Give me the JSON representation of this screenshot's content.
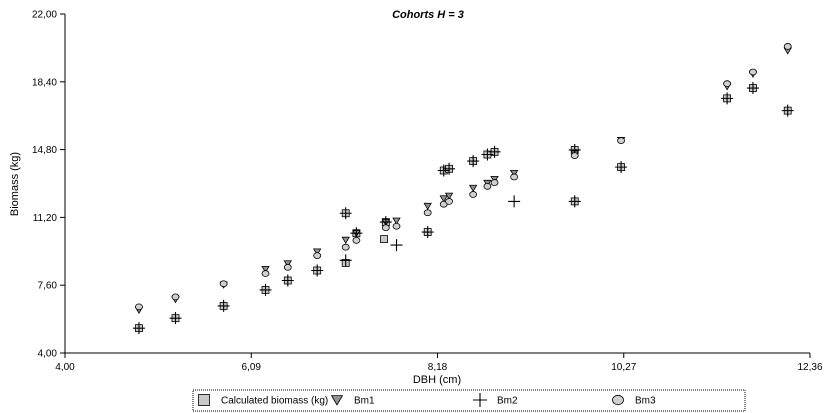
{
  "chart_data": {
    "type": "scatter",
    "title": "Cohorts H = 3",
    "xlabel": "DBH (cm)",
    "ylabel": "Biomass (kg)",
    "xlim": [
      4.0,
      12.36
    ],
    "ylim": [
      4.0,
      22.0
    ],
    "xticks": [
      "4,00",
      "6,09",
      "8,18",
      "10,27",
      "12,36"
    ],
    "yticks": [
      "4,00",
      "7,60",
      "11,20",
      "14,80",
      "18,40",
      "22,00"
    ],
    "grid": false,
    "legend_position": "bottom",
    "series": [
      {
        "name": "Calculated biomass (kg)",
        "marker": "square",
        "color": "#c8c8c8",
        "x": [
          4.83,
          5.24,
          5.78,
          6.25,
          6.5,
          6.83,
          7.15,
          7.15,
          7.27,
          7.58,
          7.6,
          8.07,
          8.25,
          8.31,
          8.58,
          8.74,
          8.82,
          9.72,
          9.72,
          10.24,
          11.43,
          11.72,
          12.11
        ],
        "y": [
          5.32,
          5.85,
          6.5,
          7.35,
          7.85,
          8.38,
          8.78,
          11.42,
          10.36,
          10.05,
          10.95,
          10.42,
          13.69,
          13.78,
          14.19,
          14.54,
          14.68,
          14.78,
          12.05,
          13.87,
          17.52,
          18.07,
          16.87
        ]
      },
      {
        "name": "Bm1",
        "marker": "triangle",
        "color": "#909090",
        "x": [
          4.83,
          5.24,
          5.78,
          6.25,
          6.5,
          6.83,
          7.15,
          7.27,
          7.6,
          7.72,
          8.07,
          8.25,
          8.31,
          8.58,
          8.74,
          8.82,
          9.04,
          9.72,
          10.24,
          11.43,
          11.72,
          12.11
        ],
        "y": [
          6.28,
          6.85,
          7.62,
          8.45,
          8.75,
          9.38,
          10.0,
          10.36,
          10.95,
          11.02,
          11.8,
          12.2,
          12.34,
          12.76,
          13.02,
          13.23,
          13.55,
          14.58,
          15.3,
          18.15,
          18.82,
          20.05
        ]
      },
      {
        "name": "Bm2",
        "marker": "cross",
        "color": "#000000",
        "x": [
          4.83,
          5.24,
          5.78,
          6.25,
          6.5,
          6.83,
          7.15,
          7.15,
          7.27,
          7.6,
          7.72,
          8.07,
          8.25,
          8.31,
          8.58,
          8.74,
          8.82,
          9.04,
          9.72,
          9.72,
          10.24,
          11.43,
          11.72,
          12.11
        ],
        "y": [
          5.32,
          5.85,
          6.5,
          7.35,
          7.85,
          8.38,
          8.92,
          11.42,
          10.36,
          10.95,
          9.73,
          10.42,
          13.69,
          13.78,
          14.19,
          14.54,
          14.68,
          12.05,
          14.78,
          12.05,
          13.87,
          17.52,
          18.07,
          16.87
        ]
      },
      {
        "name": "Bm3",
        "marker": "circle",
        "color": "#d0d0d0",
        "x": [
          4.83,
          5.24,
          5.78,
          6.25,
          6.5,
          6.83,
          7.15,
          7.27,
          7.6,
          7.72,
          8.07,
          8.25,
          8.31,
          8.58,
          8.74,
          8.82,
          9.04,
          9.72,
          10.24,
          11.43,
          11.72,
          12.11
        ],
        "y": [
          6.45,
          6.98,
          7.68,
          8.22,
          8.55,
          9.17,
          9.62,
          9.98,
          10.65,
          10.73,
          11.45,
          11.9,
          12.05,
          12.42,
          12.85,
          13.05,
          13.35,
          14.48,
          15.28,
          18.3,
          18.92,
          20.28
        ]
      }
    ]
  }
}
